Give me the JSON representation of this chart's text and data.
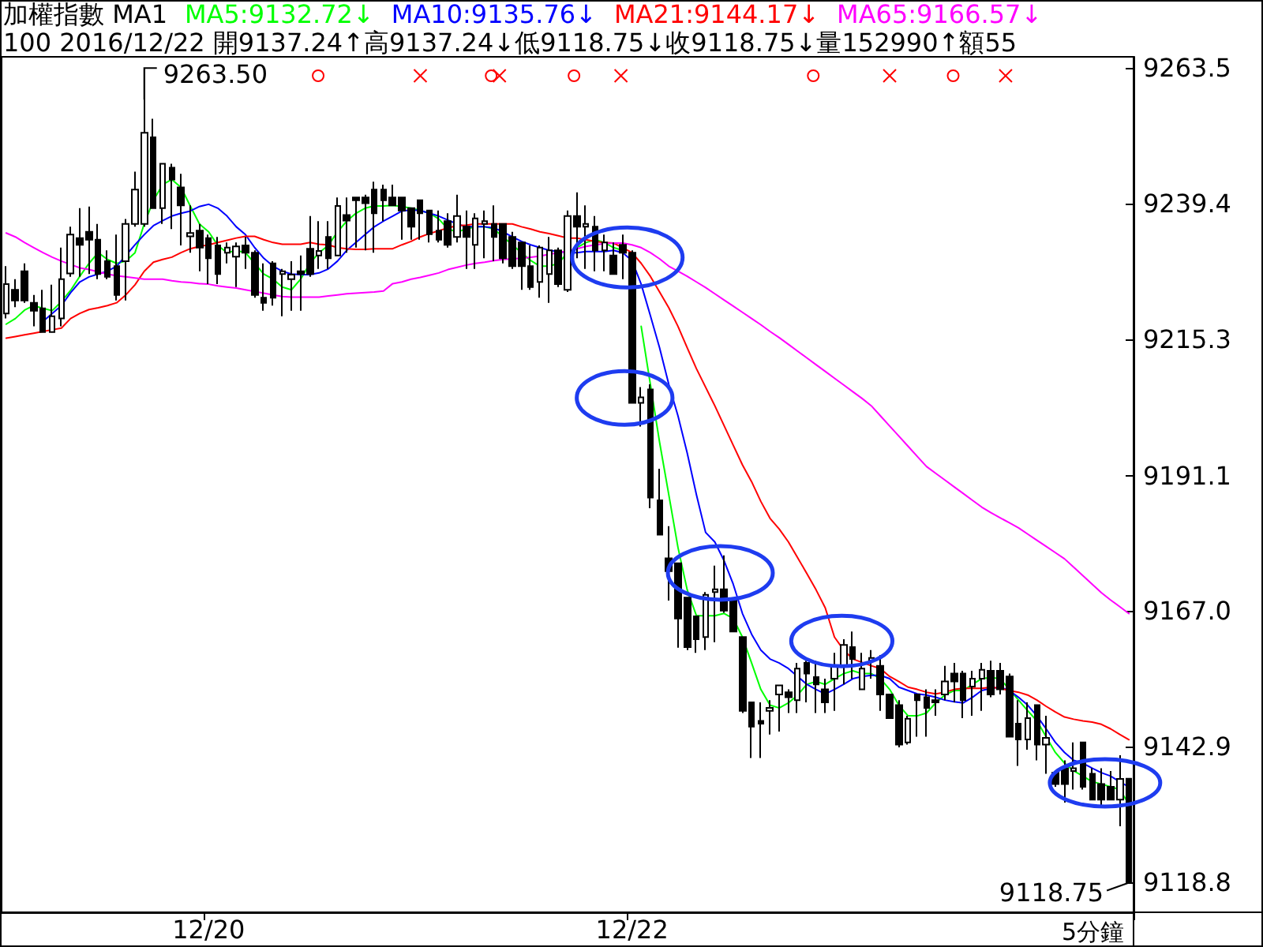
{
  "chart_data": {
    "type": "candlestick",
    "title": "加權指數 MA1",
    "subtitle": "100 2016/12/22 開9137.24↑高9137.24↓低9118.75↓收9118.75↓量152990↑額55",
    "categories": [
      null,
      null,
      null,
      null,
      null,
      null,
      null,
      null,
      null,
      null,
      null,
      null,
      null,
      null,
      null,
      null,
      null,
      null,
      null,
      null,
      null,
      null,
      "12/20",
      null,
      null,
      null,
      null,
      null,
      null,
      null,
      null,
      null,
      null,
      null,
      null,
      null,
      null,
      null,
      null,
      null,
      null,
      null,
      null,
      null,
      null,
      null,
      null,
      null,
      null,
      null,
      null,
      null,
      null,
      null,
      null,
      null,
      null,
      null,
      null,
      null,
      null,
      null,
      null,
      null,
      null,
      null,
      null,
      null,
      "12/22",
      null,
      null,
      null,
      null,
      null,
      null,
      null,
      null,
      null,
      null,
      null,
      null,
      null,
      null,
      null,
      null,
      null,
      null,
      null,
      null,
      null,
      null,
      null,
      null,
      null,
      null,
      null,
      null,
      null,
      null,
      null,
      null,
      null,
      null,
      null,
      null,
      null,
      null,
      null,
      null,
      null,
      null,
      null,
      null,
      null,
      null,
      null,
      null,
      null,
      null,
      null,
      null,
      null,
      null
    ],
    "color": "#000000",
    "ohlc": [
      [
        9219.9,
        9228.3,
        9219.0,
        9225.1
      ],
      [
        9224.1,
        9226.0,
        9221.0,
        9222.2
      ],
      [
        9227.4,
        9228.8,
        9221.8,
        9222.2
      ],
      [
        9221.8,
        9223.2,
        9217.6,
        9220.4
      ],
      [
        9220.8,
        9224.1,
        9216.6,
        9216.6
      ],
      [
        9216.6,
        9225.0,
        9216.6,
        9219.4
      ],
      [
        9219.0,
        9231.6,
        9217.6,
        9226.0
      ],
      [
        9227.0,
        9235.3,
        9226.4,
        9233.9
      ],
      [
        9233.3,
        9238.6,
        9226.4,
        9232.1
      ],
      [
        9234.4,
        9238.9,
        9226.9,
        9233.0
      ],
      [
        9233.0,
        9235.8,
        9226.0,
        9226.9
      ],
      [
        9229.2,
        9231.1,
        9226.0,
        9226.4
      ],
      [
        9228.3,
        9233.9,
        9222.2,
        9223.2
      ],
      [
        9229.2,
        9236.7,
        9222.2,
        9235.8
      ],
      [
        9235.8,
        9245.1,
        9235.3,
        9241.9
      ],
      [
        9235.8,
        9263.5,
        9235.3,
        9252.0
      ],
      [
        9251.2,
        9254.5,
        9238.6,
        9238.6
      ],
      [
        9238.6,
        9246.5,
        9235.8,
        9246.5
      ],
      [
        9245.8,
        9246.5,
        9234.9,
        9243.7
      ],
      [
        9242.3,
        9244.7,
        9232.0,
        9239.1
      ],
      [
        9233.6,
        9239.1,
        9230.7,
        9234.2
      ],
      [
        9234.6,
        9235.8,
        9227.4,
        9231.6
      ],
      [
        9233.3,
        9233.9,
        9225.1,
        9229.7
      ],
      [
        9232.0,
        9233.5,
        9225.1,
        9226.9
      ],
      [
        9230.7,
        9232.5,
        9228.8,
        9231.6
      ],
      [
        9230.0,
        9232.5,
        9224.6,
        9231.8
      ],
      [
        9232.0,
        9233.5,
        9227.8,
        9230.7
      ],
      [
        9230.7,
        9231.1,
        9222.7,
        9223.2
      ],
      [
        9222.7,
        9228.8,
        9220.4,
        9221.8
      ],
      [
        9228.8,
        9229.2,
        9221.3,
        9222.7
      ],
      [
        9226.9,
        9227.8,
        9219.4,
        9227.4
      ],
      [
        9226.0,
        9229.2,
        9220.4,
        9226.8
      ],
      [
        9227.4,
        9230.2,
        9220.4,
        9226.9
      ],
      [
        9231.4,
        9237.2,
        9226.4,
        9226.9
      ],
      [
        9230.2,
        9236.3,
        9227.8,
        9231.0
      ],
      [
        9233.5,
        9236.3,
        9227.8,
        9229.7
      ],
      [
        9230.2,
        9240.5,
        9230.2,
        9239.0
      ],
      [
        9237.4,
        9240.5,
        9230.7,
        9236.4
      ],
      [
        9240.5,
        9240.5,
        9231.6,
        9240.0
      ],
      [
        9240.5,
        9241.0,
        9231.1,
        9239.5
      ],
      [
        9241.9,
        9243.3,
        9230.7,
        9237.7
      ],
      [
        9241.9,
        9242.8,
        9236.3,
        9240.0
      ],
      [
        9240.5,
        9242.8,
        9239.1,
        9239.1
      ],
      [
        9240.5,
        9240.5,
        9233.0,
        9238.2
      ],
      [
        9238.6,
        9238.6,
        9233.0,
        9235.3
      ],
      [
        9240.0,
        9240.0,
        9233.0,
        9237.7
      ],
      [
        9238.2,
        9238.2,
        9232.5,
        9234.0
      ],
      [
        9234.6,
        9238.2,
        9232.5,
        9233.0
      ],
      [
        9236.3,
        9237.7,
        9231.6,
        9232.1
      ],
      [
        9233.5,
        9241.0,
        9232.5,
        9237.2
      ],
      [
        9235.3,
        9238.2,
        9227.8,
        9233.5
      ],
      [
        9232.1,
        9237.7,
        9227.8,
        9236.8
      ],
      [
        9235.8,
        9238.2,
        9229.7,
        9236.3
      ],
      [
        9235.8,
        9239.1,
        9229.2,
        9233.5
      ],
      [
        9235.8,
        9235.8,
        9228.8,
        9229.7
      ],
      [
        9233.5,
        9234.4,
        9227.8,
        9228.3
      ],
      [
        9232.5,
        9232.5,
        9224.1,
        9228.3
      ],
      [
        9228.3,
        9232.0,
        9224.1,
        9224.6
      ],
      [
        9225.5,
        9232.0,
        9222.7,
        9231.6
      ],
      [
        9226.9,
        9233.5,
        9221.8,
        9231.1
      ],
      [
        9231.1,
        9231.6,
        9224.6,
        9225.1
      ],
      [
        9224.1,
        9238.2,
        9223.7,
        9237.2
      ],
      [
        9237.2,
        9241.4,
        9229.7,
        9235.3
      ],
      [
        9235.3,
        9239.1,
        9227.8,
        9235.8
      ],
      [
        9235.3,
        9237.2,
        9227.4,
        9231.1
      ],
      [
        9231.1,
        9233.9,
        9227.4,
        9232.5
      ],
      [
        9230.2,
        9232.5,
        9226.9,
        9226.9
      ],
      [
        9232.1,
        9233.9,
        9226.0,
        9230.7
      ],
      [
        9230.7,
        9231.1,
        9204.0,
        9204.0
      ],
      [
        9204.0,
        9206.8,
        9199.8,
        9205.0
      ],
      [
        9206.4,
        9207.3,
        9185.3,
        9187.2
      ],
      [
        9186.7,
        9192.3,
        9180.6,
        9180.6
      ],
      [
        9176.4,
        9182.1,
        9168.9,
        9174.1
      ],
      [
        9175.5,
        9175.5,
        9160.5,
        9165.7
      ],
      [
        9169.4,
        9169.4,
        9160.1,
        9160.6
      ],
      [
        9166.1,
        9166.1,
        9159.6,
        9162.0
      ],
      [
        9162.4,
        9170.4,
        9160.1,
        9169.9
      ],
      [
        9170.4,
        9175.1,
        9161.5,
        9170.9
      ],
      [
        9170.9,
        9176.9,
        9166.7,
        9167.1
      ],
      [
        9169.0,
        9169.0,
        9163.4,
        9163.4
      ],
      [
        9162.4,
        9162.4,
        9148.9,
        9149.3
      ],
      [
        9150.8,
        9150.8,
        9140.9,
        9146.5
      ],
      [
        9147.5,
        9150.8,
        9140.9,
        9147.0
      ],
      [
        9149.3,
        9151.2,
        9145.1,
        9149.8
      ],
      [
        9152.2,
        9153.8,
        9145.6,
        9153.8
      ],
      [
        9152.6,
        9153.1,
        9148.9,
        9151.7
      ],
      [
        9151.2,
        9157.8,
        9148.9,
        9156.8
      ],
      [
        9157.8,
        9158.2,
        9150.8,
        9155.9
      ],
      [
        9155.3,
        9158.2,
        9148.9,
        9154.0
      ],
      [
        9153.1,
        9155.0,
        9148.9,
        9150.8
      ],
      [
        9155.0,
        9159.6,
        9149.3,
        9157.3
      ],
      [
        9157.3,
        9162.0,
        9154.0,
        9161.0
      ],
      [
        9160.6,
        9163.4,
        9155.0,
        9158.5
      ],
      [
        9153.1,
        9159.6,
        9153.1,
        9156.8
      ],
      [
        9158.2,
        9160.1,
        9155.0,
        9158.7
      ],
      [
        9157.3,
        9159.2,
        9149.3,
        9152.2
      ],
      [
        9152.2,
        9152.2,
        9147.9,
        9148.0
      ],
      [
        9150.3,
        9151.2,
        9142.8,
        9143.3
      ],
      [
        9143.7,
        9148.4,
        9143.3,
        9147.9
      ],
      [
        9152.2,
        9152.2,
        9144.7,
        9151.2
      ],
      [
        9151.7,
        9153.1,
        9144.7,
        9149.8
      ],
      [
        9151.2,
        9153.1,
        9148.4,
        9150.8
      ],
      [
        9152.2,
        9157.3,
        9151.2,
        9154.5
      ],
      [
        9155.9,
        9157.8,
        9150.8,
        9154.5
      ],
      [
        9155.9,
        9156.4,
        9148.0,
        9151.2
      ],
      [
        9153.6,
        9156.4,
        9148.4,
        9155.0
      ],
      [
        9155.0,
        9157.8,
        9149.3,
        9156.6
      ],
      [
        9156.4,
        9158.2,
        9151.7,
        9152.2
      ],
      [
        9156.4,
        9157.8,
        9152.2,
        9153.1
      ],
      [
        9155.4,
        9155.9,
        9144.7,
        9144.7
      ],
      [
        9147.0,
        9151.2,
        9139.5,
        9144.2
      ],
      [
        9144.2,
        9150.8,
        9142.4,
        9148.0
      ],
      [
        9150.3,
        9150.3,
        9140.5,
        9143.3
      ],
      [
        9143.3,
        9148.4,
        9138.1,
        9144.5
      ],
      [
        9138.3,
        9138.6,
        9135.8,
        9136.3
      ],
      [
        9139.1,
        9140.5,
        9133.0,
        9136.3
      ],
      [
        9138.6,
        9143.7,
        9135.3,
        9139.1
      ],
      [
        9143.7,
        9143.7,
        9135.3,
        9135.8
      ],
      [
        9138.1,
        9139.1,
        9133.5,
        9133.5
      ],
      [
        9136.3,
        9139.1,
        9132.0,
        9133.5
      ],
      [
        9135.8,
        9138.6,
        9133.5,
        9133.5
      ],
      [
        9133.5,
        9141.4,
        9128.8,
        9137.2
      ],
      [
        9137.24,
        9137.24,
        9118.75,
        9118.75
      ]
    ],
    "series": [
      {
        "name": "MA5:9132.72↓",
        "color": "#00ff00",
        "type": "line",
        "values": [
          9218.0,
          9219.0,
          9220.5,
          9221.3,
          9220.8,
          9220.4,
          9222.0,
          9224.0,
          9226.5,
          9228.8,
          9230.7,
          9229.5,
          9228.8,
          9229.2,
          9230.7,
          9235.8,
          9240.0,
          9242.8,
          9243.7,
          9242.3,
          9239.0,
          9235.8,
          9234.4,
          9232.0,
          9230.7,
          9231.1,
          9230.7,
          9228.8,
          9226.9,
          9226.0,
          9224.6,
          9224.1,
          9226.0,
          9228.8,
          9230.7,
          9232.0,
          9234.4,
          9236.3,
          9237.7,
          9238.6,
          9239.0,
          9239.0,
          9239.1,
          9238.9,
          9238.6,
          9238.2,
          9237.7,
          9236.7,
          9234.9,
          9234.4,
          9234.9,
          9235.3,
          9235.3,
          9234.9,
          9233.5,
          9232.1,
          9230.7,
          9229.3,
          9228.3,
          9228.3,
          9228.8,
          9230.7,
          9231.6,
          9232.5,
          9233.0,
          9232.5,
          9231.6,
          9231.1,
          null,
          9217.6,
          9207.3,
          9197.0,
          9187.7,
          9178.3,
          9170.8,
          9166.2,
          9166.2,
          9166.2,
          9166.6,
          9165.7,
          9162.4,
          9157.8,
          9153.1,
          9150.3,
          9149.8,
          9150.7,
          9152.1,
          9154.0,
          9154.5,
          9154.0,
          9155.0,
          9155.9,
          9156.4,
          9155.9,
          9155.9,
          9155.0,
          9153.1,
          9150.3,
          9148.4,
          9148.4,
          9148.9,
          9150.7,
          9152.1,
          9152.9,
          9152.9,
          9154.0,
          9155.0,
          9155.2,
          9155.0,
          9153.1,
          9151.2,
          9149.3,
          9147.5,
          9144.7,
          9141.9,
          9140.0,
          9138.6,
          9137.7,
          9136.7,
          9136.3,
          9135.8,
          9135.3,
          9132.72
        ]
      },
      {
        "name": "MA10:9135.76↓",
        "color": "#0000ff",
        "type": "line",
        "values": [
          null,
          null,
          null,
          null,
          9218.5,
          9219.9,
          9221.3,
          9223.6,
          9225.5,
          9226.4,
          9226.9,
          9227.4,
          9228.3,
          9230.2,
          9232.1,
          9233.9,
          9235.5,
          9236.4,
          9237.2,
          9237.7,
          9238.1,
          9238.9,
          9239.3,
          9238.6,
          9237.2,
          9235.3,
          9233.9,
          9231.6,
          9229.7,
          9228.3,
          9227.4,
          9226.9,
          9226.8,
          9226.8,
          9227.1,
          9227.8,
          9229.2,
          9231.1,
          9232.5,
          9233.9,
          9235.3,
          9236.3,
          9237.2,
          9238.1,
          9238.3,
          9238.2,
          9237.7,
          9237.2,
          9236.5,
          9235.8,
          9235.3,
          9235.3,
          9235.3,
          9235.1,
          9234.4,
          9233.5,
          9232.7,
          9232.1,
          9231.6,
          9231.1,
          9230.9,
          9230.7,
          9230.7,
          9230.9,
          9230.9,
          9230.9,
          9231.1,
          9230.7,
          9229.3,
          9225.1,
          9219.5,
          9213.8,
          9207.3,
          9201.7,
          9195.1,
          9187.7,
          9181.0,
          9179.3,
          9176.0,
          9171.8,
          9166.6,
          9162.9,
          9160.1,
          9158.5,
          9157.8,
          9156.8,
          9155.4,
          9154.0,
          9153.1,
          9152.3,
          9153.1,
          9154.0,
          9155.0,
          9155.4,
          9155.6,
          9155.6,
          9155.0,
          9153.5,
          9152.9,
          9152.3,
          9152.1,
          9151.7,
          9151.2,
          9150.9,
          9150.7,
          9151.7,
          9152.9,
          9153.3,
          9153.5,
          9152.9,
          9151.7,
          9150.3,
          9148.4,
          9146.1,
          9143.7,
          9141.9,
          9140.5,
          9140.0,
          9139.1,
          9138.3,
          9137.7,
          9136.7,
          9135.76
        ]
      },
      {
        "name": "MA21:9144.17↓",
        "color": "#ff0000",
        "type": "line",
        "values": [
          9215.5,
          9215.8,
          9216.1,
          9216.4,
          9216.7,
          9217.0,
          9217.3,
          9219.0,
          9219.9,
          9220.6,
          9220.9,
          9221.3,
          9221.8,
          9223.2,
          9225.0,
          9227.4,
          9229.0,
          9229.5,
          9229.9,
          9230.7,
          9231.4,
          9231.8,
          9232.1,
          9232.5,
          9232.9,
          9233.3,
          9233.6,
          9233.6,
          9233.0,
          9232.5,
          9232.2,
          9232.2,
          9232.2,
          9232.5,
          9232.2,
          9232.1,
          9231.6,
          9231.4,
          9231.3,
          9231.3,
          9231.4,
          9231.4,
          9231.4,
          9232.1,
          9232.7,
          9233.5,
          9234.1,
          9234.6,
          9235.1,
          9235.5,
          9235.6,
          9235.8,
          9235.8,
          9235.8,
          9235.8,
          9235.8,
          9235.3,
          9234.9,
          9234.4,
          9234.1,
          9233.7,
          9233.3,
          9233.3,
          9233.0,
          9232.7,
          9232.5,
          9232.4,
          9231.6,
          9230.7,
          9228.8,
          9226.5,
          9223.7,
          9220.9,
          9217.6,
          9213.8,
          9210.1,
          9206.8,
          9203.5,
          9200.0,
          9196.5,
          9193.0,
          9190.0,
          9186.5,
          9183.5,
          9181.6,
          9179.3,
          9176.5,
          9173.7,
          9170.8,
          9167.6,
          9162.4,
          9160.1,
          9158.5,
          9157.9,
          9157.3,
          9156.8,
          9155.4,
          9154.5,
          9153.5,
          9153.1,
          9152.6,
          9152.3,
          9152.6,
          9153.1,
          9153.3,
          9153.3,
          9153.3,
          9153.5,
          9153.3,
          9152.9,
          9152.6,
          9152.1,
          9151.2,
          9150.1,
          9149.1,
          9148.2,
          9147.8,
          9147.5,
          9147.3,
          9146.9,
          9146.1,
          9145.1,
          9144.17
        ]
      },
      {
        "name": "MA65:9166.57↓",
        "color": "#ff00ff",
        "type": "line",
        "values": [
          9234.2,
          9233.5,
          9232.5,
          9231.6,
          9230.7,
          9229.9,
          9229.2,
          9228.6,
          9228.0,
          9227.7,
          9227.3,
          9226.9,
          9226.6,
          9226.4,
          9226.2,
          9226.0,
          9226.0,
          9226.0,
          9225.7,
          9225.5,
          9225.4,
          9225.2,
          9225.1,
          9224.8,
          9224.6,
          9224.4,
          9224.1,
          9223.8,
          9223.5,
          9223.2,
          9222.9,
          9222.8,
          9222.8,
          9222.8,
          9222.8,
          9223.0,
          9223.2,
          9223.4,
          9223.5,
          9223.6,
          9223.7,
          9223.9,
          9225.2,
          9225.5,
          9226.0,
          9226.3,
          9226.7,
          9227.1,
          9227.7,
          9228.1,
          9228.5,
          9228.8,
          9229.0,
          9229.3,
          9229.5,
          9229.6,
          9229.7,
          9229.9,
          9230.1,
          9230.4,
          9230.7,
          9231.0,
          9231.4,
          9231.8,
          9232.1,
          9232.3,
          9232.4,
          9232.4,
          9232.1,
          9231.6,
          9230.7,
          9229.6,
          9228.3,
          9227.4,
          9226.5,
          9225.5,
          9224.5,
          9223.4,
          9222.3,
          9221.2,
          9220.1,
          9219.0,
          9217.9,
          9216.7,
          9215.6,
          9214.4,
          9213.2,
          9212.0,
          9210.8,
          9209.6,
          9208.4,
          9207.2,
          9206.0,
          9204.8,
          9203.5,
          9201.7,
          9199.9,
          9198.1,
          9196.3,
          9194.5,
          9192.7,
          9191.5,
          9190.3,
          9189.1,
          9187.9,
          9186.7,
          9185.5,
          9184.5,
          9183.6,
          9182.7,
          9181.8,
          9180.7,
          9179.6,
          9178.5,
          9177.4,
          9176.3,
          9174.8,
          9173.3,
          9171.8,
          9170.3,
          9169.0,
          9167.8,
          9166.57
        ]
      }
    ],
    "ylim": [
      9113.5,
      9265.5
    ],
    "yticks": [
      9263.5,
      9239.4,
      9215.3,
      9191.1,
      {
        "value": 9167,
        "label": "9167.0"
      },
      9142.9,
      9118.8
    ],
    "legend": "top left",
    "marker": "none",
    "annotations": [
      "5分鐘",
      "9263.50",
      "9118.75"
    ]
  }
}
